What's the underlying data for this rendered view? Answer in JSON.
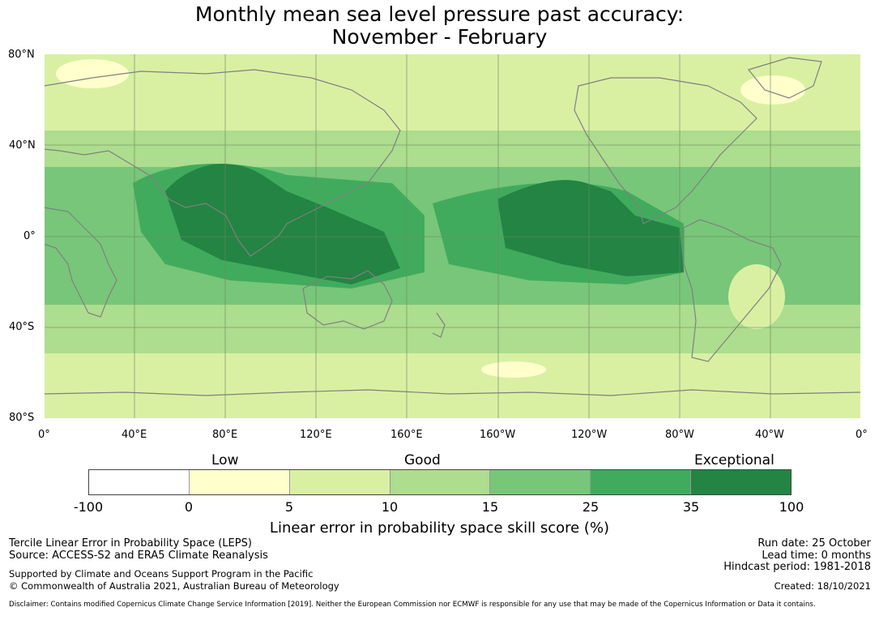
{
  "title": {
    "line1": "Monthly mean sea level pressure past accuracy:",
    "line2": "November - February"
  },
  "map": {
    "y_labels": [
      "80°N",
      "40°N",
      "0°",
      "40°S",
      "80°S"
    ],
    "x_labels": [
      "0°",
      "40°E",
      "80°E",
      "120°E",
      "160°E",
      "160°W",
      "120°W",
      "80°W",
      "40°W",
      "0°"
    ],
    "colors": [
      "#ffffff",
      "#ffffcc",
      "#d9f0a3",
      "#addd8e",
      "#78c679",
      "#41ab5d",
      "#238443"
    ]
  },
  "colorbar": {
    "categories": [
      "Low",
      "Good",
      "Exceptional"
    ],
    "ticks": [
      "-100",
      "0",
      "5",
      "10",
      "15",
      "25",
      "35",
      "100"
    ],
    "label": "Linear error in probability space skill score (%)"
  },
  "footer": {
    "left1": "Tercile Linear Error in Probability Space (LEPS)",
    "left2": "Source: ACCESS-S2 and ERA5 Climate Reanalysis",
    "left3": "Supported by Climate and Oceans Support Program in the Pacific",
    "left4": "© Commonwealth of Australia 2021, Australian Bureau of Meteorology",
    "run_date": "Run date: 25 October",
    "lead_time": "Lead time: 0 months",
    "hindcast": "Hindcast period: 1981-2018",
    "created": "Created: 18/10/2021",
    "disclaimer": "Disclaimer: Contains modified Copernicus Climate Change Service Information [2019]. Neither the European Commission nor ECMWF is responsible for any use that may be made of the Copernicus Information or Data it contains."
  }
}
